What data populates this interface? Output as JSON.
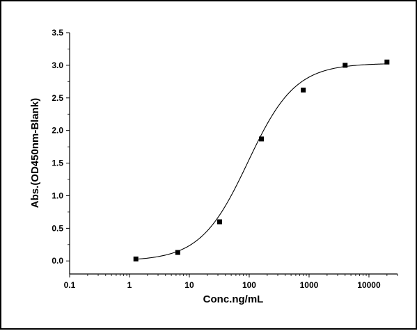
{
  "chart_data": {
    "type": "scatter",
    "title": "",
    "xlabel": "Conc.ng/mL",
    "ylabel": "Abs.(OD450nm-Blank)",
    "x_scale": "log",
    "xlim": [
      0.1,
      30000
    ],
    "ylim": [
      -0.2,
      3.5
    ],
    "x_ticks": [
      {
        "value": 0.1,
        "label": "0.1"
      },
      {
        "value": 1,
        "label": "1"
      },
      {
        "value": 10,
        "label": "10"
      },
      {
        "value": 100,
        "label": "100"
      },
      {
        "value": 1000,
        "label": "1000"
      },
      {
        "value": 10000,
        "label": "10000"
      }
    ],
    "y_ticks": [
      {
        "value": 0.0,
        "label": "0.0"
      },
      {
        "value": 0.5,
        "label": "0.5"
      },
      {
        "value": 1.0,
        "label": "1.0"
      },
      {
        "value": 1.5,
        "label": "1.5"
      },
      {
        "value": 2.0,
        "label": "2.0"
      },
      {
        "value": 2.5,
        "label": "2.5"
      },
      {
        "value": 3.0,
        "label": "3.0"
      },
      {
        "value": 3.5,
        "label": "3.5"
      }
    ],
    "grid": false,
    "series": [
      {
        "x": [
          1.28,
          6.4,
          32,
          160,
          800,
          4000,
          20000
        ],
        "y": [
          0.03,
          0.13,
          0.6,
          1.87,
          2.62,
          3.0,
          3.05
        ]
      }
    ],
    "fit_curve": {
      "model": "4PL",
      "bottom": 0.0,
      "top": 3.03,
      "ec50": 95,
      "hill": 1.1,
      "x_range": [
        1.28,
        20000
      ]
    },
    "colors": {
      "marker": "#000000",
      "line": "#000000"
    }
  }
}
